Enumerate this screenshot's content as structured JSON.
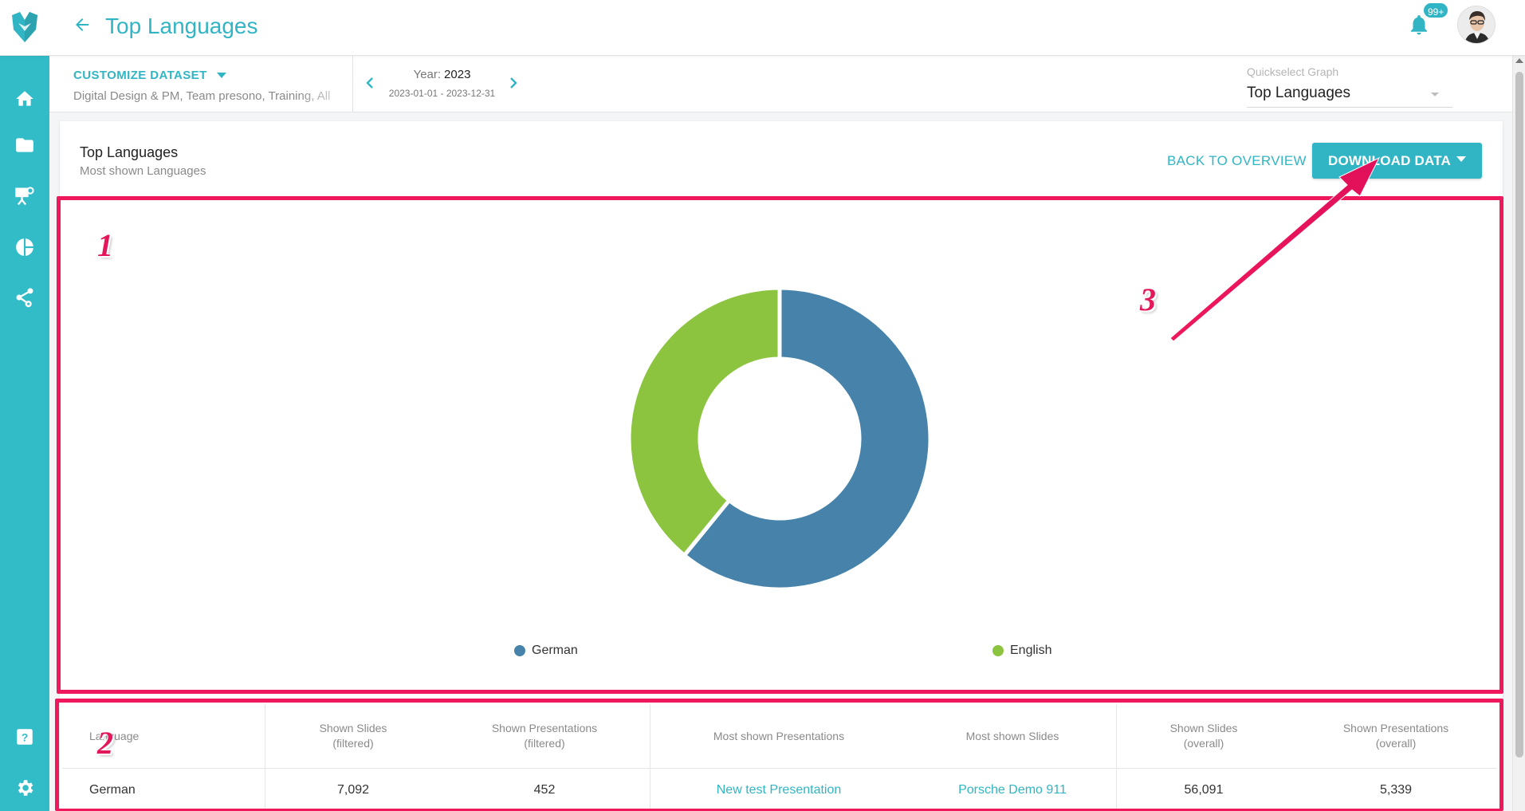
{
  "header": {
    "title": "Top Languages",
    "notifications_badge": "99+"
  },
  "filter": {
    "customize_label": "CUSTOMIZE DATASET",
    "dataset_desc": "Digital Design & PM, Team presono, Training, All",
    "year_label": "Year:",
    "year_value": "2023",
    "date_range": "2023-01-01 - 2023-12-31",
    "quickselect_label": "Quickselect Graph",
    "quickselect_value": "Top Languages"
  },
  "card": {
    "title": "Top Languages",
    "subtitle": "Most shown Languages",
    "back_label": "BACK TO OVERVIEW",
    "download_label": "DOWNLOAD DATA"
  },
  "colors": {
    "accent": "#31b5c4",
    "german": "#4682a9",
    "english": "#8cc43f",
    "annotation": "#f0185c"
  },
  "chart_data": {
    "type": "pie",
    "donut": true,
    "categories": [
      "German",
      "English"
    ],
    "values": [
      60.9,
      39.1
    ],
    "legend_position": "bottom"
  },
  "table": {
    "headers": [
      [
        "Language"
      ],
      [
        "Shown Slides",
        "(filtered)"
      ],
      [
        "Shown Presentations",
        "(filtered)"
      ],
      [
        "Most shown Presentations"
      ],
      [
        "Most shown Slides"
      ],
      [
        "Shown Slides",
        "(overall)"
      ],
      [
        "Shown Presentations",
        "(overall)"
      ]
    ],
    "rows": [
      {
        "language": "German",
        "slides_filtered": "7,092",
        "presentations_filtered": "452",
        "most_presentation": "New test Presentation",
        "most_slide": "Porsche Demo 911",
        "slides_overall": "56,091",
        "presentations_overall": "5,339"
      }
    ]
  },
  "annotations": {
    "label_1": "1",
    "label_2": "2",
    "label_3": "3"
  }
}
